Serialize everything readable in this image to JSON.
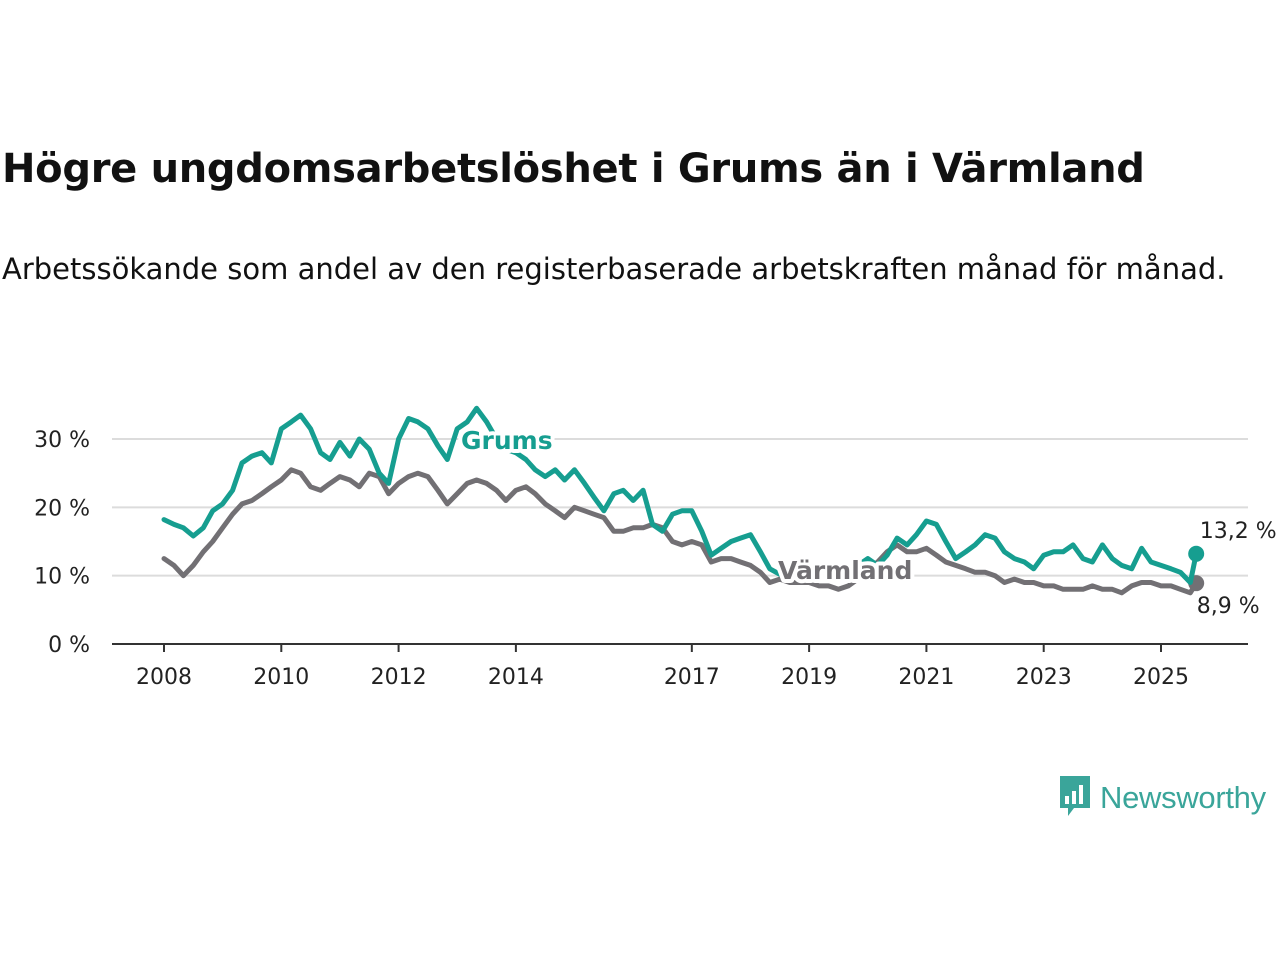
{
  "title": "Högre ungdomsarbetslöshet i Grums än i Värmland",
  "subtitle": "Arbetssökande som andel av den registerbaserade arbetskraften månad för månad.",
  "brand": {
    "name": "Newsworthy",
    "icon": "bar-chart-speech-bubble-icon",
    "color": "#3aa59a"
  },
  "chart_data": {
    "type": "line",
    "title": "Högre ungdomsarbetslöshet i Grums än i Värmland",
    "xlabel": "",
    "ylabel": "",
    "x_ticks": [
      "2008",
      "2010",
      "2012",
      "2014",
      "2017",
      "2019",
      "2021",
      "2023",
      "2025"
    ],
    "y_ticks": [
      "0 %",
      "10 %",
      "20 %",
      "30 %"
    ],
    "ylim": [
      0,
      30
    ],
    "grid": "horizontal",
    "legend": "inline labels",
    "series": [
      {
        "name": "Grums",
        "color": "#169e90",
        "end_label": "13,2 %",
        "points": [
          [
            2008.0,
            18.2
          ],
          [
            2008.17,
            17.5
          ],
          [
            2008.33,
            17.0
          ],
          [
            2008.5,
            15.8
          ],
          [
            2008.67,
            17.0
          ],
          [
            2008.83,
            19.5
          ],
          [
            2009.0,
            20.5
          ],
          [
            2009.17,
            22.5
          ],
          [
            2009.33,
            26.5
          ],
          [
            2009.5,
            27.5
          ],
          [
            2009.67,
            28.0
          ],
          [
            2009.83,
            26.5
          ],
          [
            2010.0,
            31.5
          ],
          [
            2010.17,
            32.5
          ],
          [
            2010.33,
            33.5
          ],
          [
            2010.5,
            31.5
          ],
          [
            2010.67,
            28.0
          ],
          [
            2010.83,
            27.0
          ],
          [
            2011.0,
            29.5
          ],
          [
            2011.17,
            27.5
          ],
          [
            2011.33,
            30.0
          ],
          [
            2011.5,
            28.5
          ],
          [
            2011.67,
            25.0
          ],
          [
            2011.83,
            23.5
          ],
          [
            2012.0,
            30.0
          ],
          [
            2012.17,
            33.0
          ],
          [
            2012.33,
            32.5
          ],
          [
            2012.5,
            31.5
          ],
          [
            2012.67,
            29.0
          ],
          [
            2012.83,
            27.0
          ],
          [
            2013.0,
            31.5
          ],
          [
            2013.17,
            32.5
          ],
          [
            2013.33,
            34.5
          ],
          [
            2013.5,
            32.5
          ],
          [
            2013.67,
            30.0
          ],
          [
            2013.83,
            28.5
          ],
          [
            2014.0,
            28.0
          ],
          [
            2014.17,
            27.0
          ],
          [
            2014.33,
            25.5
          ],
          [
            2014.5,
            24.5
          ],
          [
            2014.67,
            25.5
          ],
          [
            2014.83,
            24.0
          ],
          [
            2015.0,
            25.5
          ],
          [
            2015.17,
            23.5
          ],
          [
            2015.33,
            21.5
          ],
          [
            2015.5,
            19.5
          ],
          [
            2015.67,
            22.0
          ],
          [
            2015.83,
            22.5
          ],
          [
            2016.0,
            21.0
          ],
          [
            2016.17,
            22.5
          ],
          [
            2016.33,
            17.5
          ],
          [
            2016.5,
            16.5
          ],
          [
            2016.67,
            19.0
          ],
          [
            2016.83,
            19.5
          ],
          [
            2017.0,
            19.5
          ],
          [
            2017.17,
            16.5
          ],
          [
            2017.33,
            13.0
          ],
          [
            2017.5,
            14.0
          ],
          [
            2017.67,
            15.0
          ],
          [
            2017.83,
            15.5
          ],
          [
            2018.0,
            16.0
          ],
          [
            2018.17,
            13.5
          ],
          [
            2018.33,
            11.0
          ],
          [
            2018.5,
            10.2
          ],
          [
            2018.67,
            10.5
          ],
          [
            2018.83,
            10.0
          ],
          [
            2019.0,
            11.5
          ],
          [
            2019.17,
            11.0
          ],
          [
            2019.33,
            10.5
          ],
          [
            2019.5,
            9.5
          ],
          [
            2019.67,
            10.0
          ],
          [
            2019.83,
            11.5
          ],
          [
            2020.0,
            12.5
          ],
          [
            2020.17,
            11.5
          ],
          [
            2020.33,
            13.0
          ],
          [
            2020.5,
            15.5
          ],
          [
            2020.67,
            14.5
          ],
          [
            2020.83,
            16.0
          ],
          [
            2021.0,
            18.0
          ],
          [
            2021.17,
            17.5
          ],
          [
            2021.33,
            15.0
          ],
          [
            2021.5,
            12.5
          ],
          [
            2021.67,
            13.5
          ],
          [
            2021.83,
            14.5
          ],
          [
            2022.0,
            16.0
          ],
          [
            2022.17,
            15.5
          ],
          [
            2022.33,
            13.5
          ],
          [
            2022.5,
            12.5
          ],
          [
            2022.67,
            12.0
          ],
          [
            2022.83,
            11.0
          ],
          [
            2023.0,
            13.0
          ],
          [
            2023.17,
            13.5
          ],
          [
            2023.33,
            13.5
          ],
          [
            2023.5,
            14.5
          ],
          [
            2023.67,
            12.5
          ],
          [
            2023.83,
            12.0
          ],
          [
            2024.0,
            14.5
          ],
          [
            2024.17,
            12.5
          ],
          [
            2024.33,
            11.5
          ],
          [
            2024.5,
            11.0
          ],
          [
            2024.67,
            14.0
          ],
          [
            2024.83,
            12.0
          ],
          [
            2025.0,
            11.5
          ],
          [
            2025.17,
            11.0
          ],
          [
            2025.33,
            10.5
          ],
          [
            2025.5,
            9.0
          ],
          [
            2025.6,
            13.2
          ]
        ]
      },
      {
        "name": "Värmland",
        "color": "#727074",
        "end_label": "8,9 %",
        "points": [
          [
            2008.0,
            12.5
          ],
          [
            2008.17,
            11.5
          ],
          [
            2008.33,
            10.0
          ],
          [
            2008.5,
            11.5
          ],
          [
            2008.67,
            13.5
          ],
          [
            2008.83,
            15.0
          ],
          [
            2009.0,
            17.0
          ],
          [
            2009.17,
            19.0
          ],
          [
            2009.33,
            20.5
          ],
          [
            2009.5,
            21.0
          ],
          [
            2009.67,
            22.0
          ],
          [
            2009.83,
            23.0
          ],
          [
            2010.0,
            24.0
          ],
          [
            2010.17,
            25.5
          ],
          [
            2010.33,
            25.0
          ],
          [
            2010.5,
            23.0
          ],
          [
            2010.67,
            22.5
          ],
          [
            2010.83,
            23.5
          ],
          [
            2011.0,
            24.5
          ],
          [
            2011.17,
            24.0
          ],
          [
            2011.33,
            23.0
          ],
          [
            2011.5,
            25.0
          ],
          [
            2011.67,
            24.5
          ],
          [
            2011.83,
            22.0
          ],
          [
            2012.0,
            23.5
          ],
          [
            2012.17,
            24.5
          ],
          [
            2012.33,
            25.0
          ],
          [
            2012.5,
            24.5
          ],
          [
            2012.67,
            22.5
          ],
          [
            2012.83,
            20.5
          ],
          [
            2013.0,
            22.0
          ],
          [
            2013.17,
            23.5
          ],
          [
            2013.33,
            24.0
          ],
          [
            2013.5,
            23.5
          ],
          [
            2013.67,
            22.5
          ],
          [
            2013.83,
            21.0
          ],
          [
            2014.0,
            22.5
          ],
          [
            2014.17,
            23.0
          ],
          [
            2014.33,
            22.0
          ],
          [
            2014.5,
            20.5
          ],
          [
            2014.67,
            19.5
          ],
          [
            2014.83,
            18.5
          ],
          [
            2015.0,
            20.0
          ],
          [
            2015.17,
            19.5
          ],
          [
            2015.33,
            19.0
          ],
          [
            2015.5,
            18.5
          ],
          [
            2015.67,
            16.5
          ],
          [
            2015.83,
            16.5
          ],
          [
            2016.0,
            17.0
          ],
          [
            2016.17,
            17.0
          ],
          [
            2016.33,
            17.5
          ],
          [
            2016.5,
            17.0
          ],
          [
            2016.67,
            15.0
          ],
          [
            2016.83,
            14.5
          ],
          [
            2017.0,
            15.0
          ],
          [
            2017.17,
            14.5
          ],
          [
            2017.33,
            12.0
          ],
          [
            2017.5,
            12.5
          ],
          [
            2017.67,
            12.5
          ],
          [
            2017.83,
            12.0
          ],
          [
            2018.0,
            11.5
          ],
          [
            2018.17,
            10.5
          ],
          [
            2018.33,
            9.0
          ],
          [
            2018.5,
            9.5
          ],
          [
            2018.67,
            9.0
          ],
          [
            2018.83,
            9.0
          ],
          [
            2019.0,
            9.0
          ],
          [
            2019.17,
            8.5
          ],
          [
            2019.33,
            8.5
          ],
          [
            2019.5,
            8.0
          ],
          [
            2019.67,
            8.5
          ],
          [
            2019.83,
            9.5
          ],
          [
            2020.0,
            11.0
          ],
          [
            2020.17,
            12.0
          ],
          [
            2020.33,
            13.5
          ],
          [
            2020.5,
            14.5
          ],
          [
            2020.67,
            13.5
          ],
          [
            2020.83,
            13.5
          ],
          [
            2021.0,
            14.0
          ],
          [
            2021.17,
            13.0
          ],
          [
            2021.33,
            12.0
          ],
          [
            2021.5,
            11.5
          ],
          [
            2021.67,
            11.0
          ],
          [
            2021.83,
            10.5
          ],
          [
            2022.0,
            10.5
          ],
          [
            2022.17,
            10.0
          ],
          [
            2022.33,
            9.0
          ],
          [
            2022.5,
            9.5
          ],
          [
            2022.67,
            9.0
          ],
          [
            2022.83,
            9.0
          ],
          [
            2023.0,
            8.5
          ],
          [
            2023.17,
            8.5
          ],
          [
            2023.33,
            8.0
          ],
          [
            2023.5,
            8.0
          ],
          [
            2023.67,
            8.0
          ],
          [
            2023.83,
            8.5
          ],
          [
            2024.0,
            8.0
          ],
          [
            2024.17,
            8.0
          ],
          [
            2024.33,
            7.5
          ],
          [
            2024.5,
            8.5
          ],
          [
            2024.67,
            9.0
          ],
          [
            2024.83,
            9.0
          ],
          [
            2025.0,
            8.5
          ],
          [
            2025.17,
            8.5
          ],
          [
            2025.33,
            8.0
          ],
          [
            2025.5,
            7.5
          ],
          [
            2025.6,
            8.9
          ]
        ]
      }
    ]
  }
}
